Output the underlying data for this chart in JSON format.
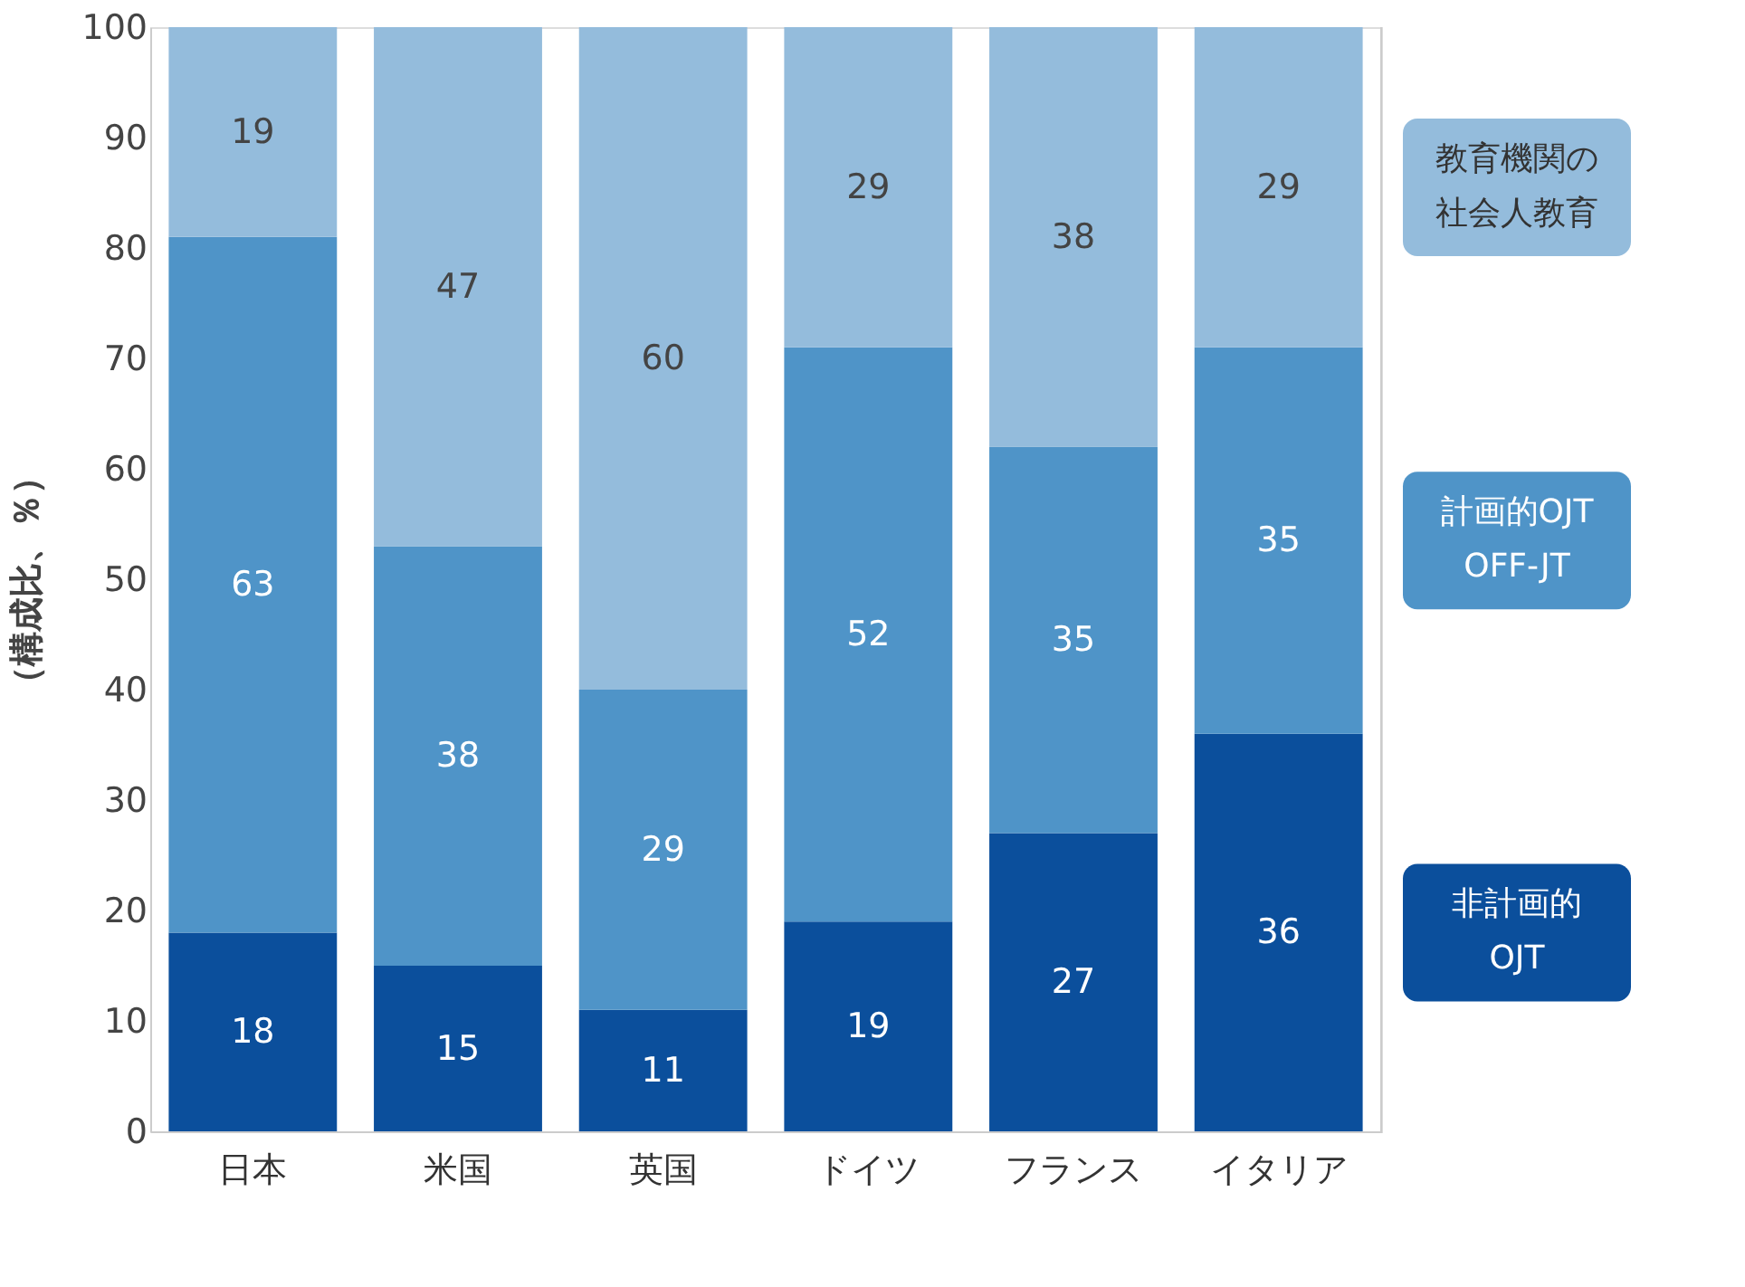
{
  "chart_data": {
    "type": "bar",
    "stacked": true,
    "ylabel": "（構成比、％）",
    "categories": [
      "日本",
      "米国",
      "英国",
      "ドイツ",
      "フランス",
      "イタリア"
    ],
    "series": [
      {
        "name": "非計画的OJT",
        "color": "#0b4f9c",
        "values": [
          18,
          15,
          11,
          19,
          27,
          36
        ]
      },
      {
        "name": "計画的OJT OFF-JT",
        "color": "#4f94c8",
        "values": [
          63,
          38,
          29,
          52,
          35,
          35
        ]
      },
      {
        "name": "教育機関の社会人教育",
        "color": "#94bcdc",
        "values": [
          19,
          47,
          60,
          29,
          38,
          29
        ]
      }
    ],
    "ylim": [
      0,
      100
    ],
    "yticks": [
      0,
      10,
      20,
      30,
      40,
      50,
      60,
      70,
      80,
      90,
      100
    ],
    "data_labels": true,
    "grid": false,
    "legend": "right"
  }
}
